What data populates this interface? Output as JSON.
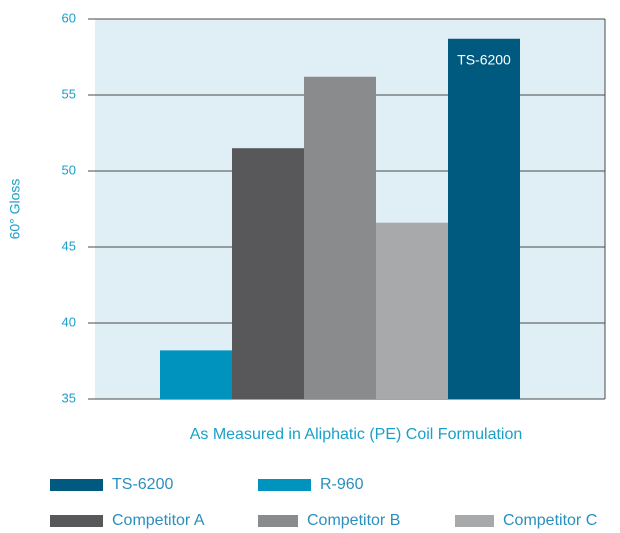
{
  "chart_data": {
    "type": "bar",
    "x_label": "As Measured in Aliphatic (PE) Coil Formulation",
    "y_label": "60° Gloss",
    "series": [
      {
        "name": "R-960",
        "color": "#0093be",
        "values": [
          38.2
        ]
      },
      {
        "name": "Competitor A",
        "color": "#58585a",
        "values": [
          51.5
        ]
      },
      {
        "name": "Competitor B",
        "color": "#8a8b8d",
        "values": [
          56.2
        ]
      },
      {
        "name": "Competitor C",
        "color": "#a8a9ab",
        "values": [
          46.6
        ]
      },
      {
        "name": "TS-6200",
        "color": "#005a80",
        "values": [
          58.7
        ]
      }
    ],
    "annotations": [
      "TS-6200"
    ],
    "ylim": [
      35,
      60
    ],
    "yticks": [
      35,
      40,
      45,
      50,
      55,
      60
    ],
    "grid": true,
    "legend": "bottom",
    "plot_background": "#e0eef5"
  }
}
